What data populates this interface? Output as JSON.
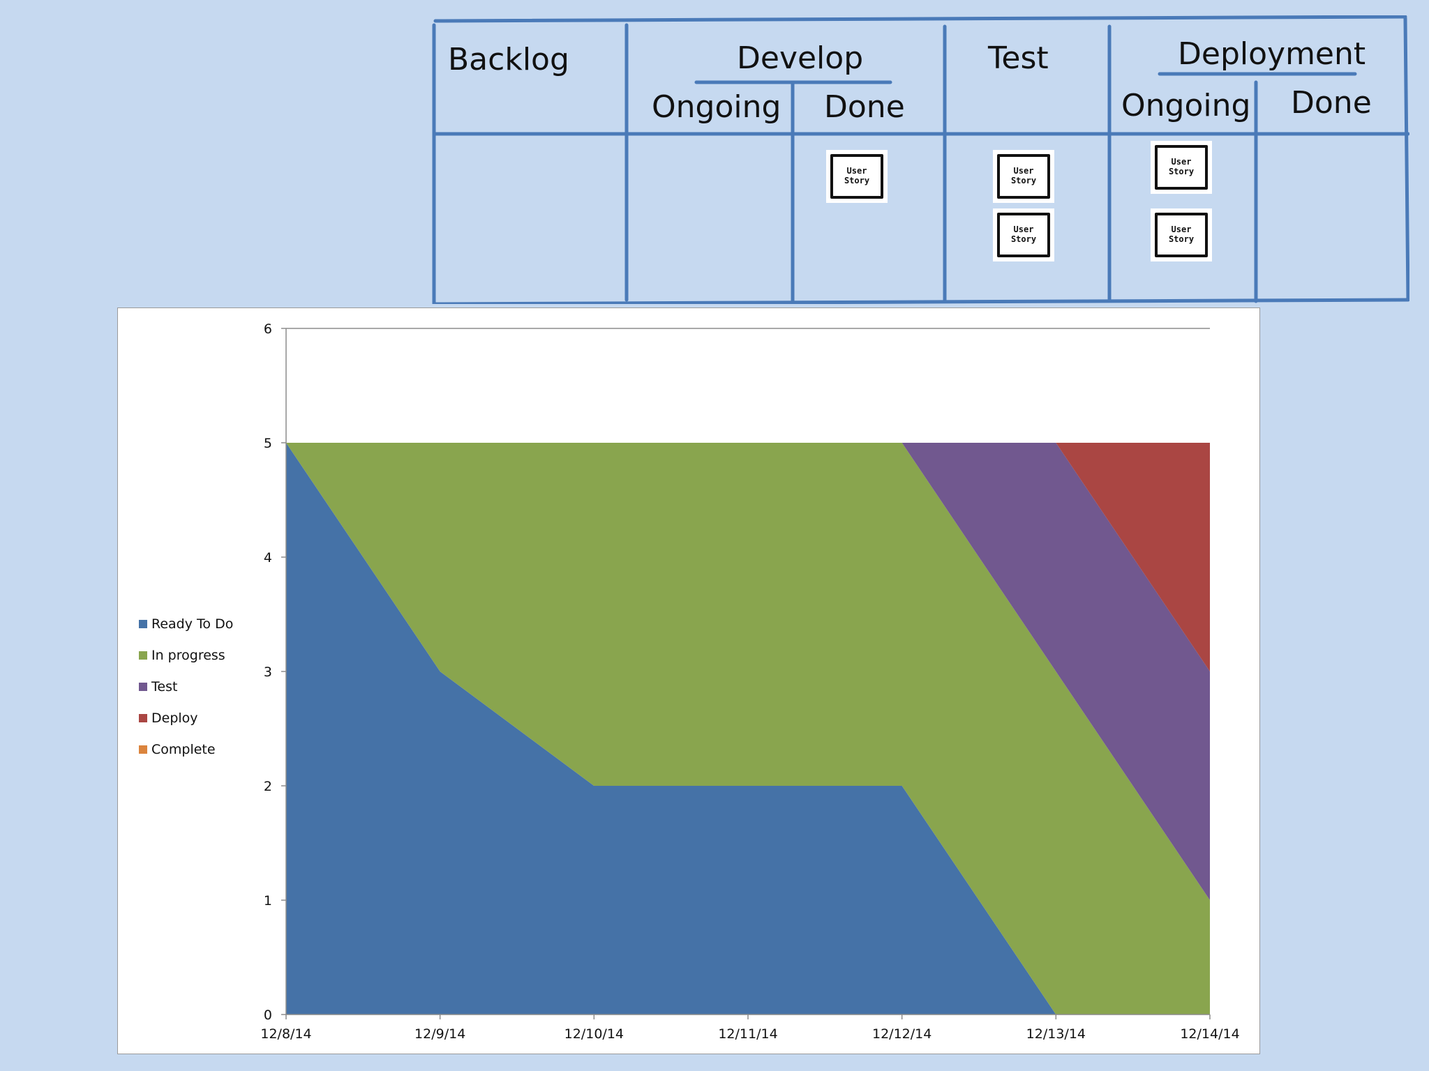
{
  "board": {
    "columns": {
      "backlog": "Backlog",
      "develop": "Develop",
      "develop_ongoing": "Ongoing",
      "develop_done": "Done",
      "test": "Test",
      "deployment": "Deployment",
      "deployment_ongoing": "Ongoing",
      "deployment_done": "Done"
    },
    "card_label": "User\nStory",
    "line_color": "#4a7ab8",
    "cards": {
      "develop_done": 1,
      "test": 2,
      "deployment_ongoing": 2
    }
  },
  "chart_data": {
    "type": "area",
    "stacked": true,
    "title": "",
    "xlabel": "",
    "ylabel": "",
    "ylim": [
      0,
      6
    ],
    "yticks": [
      0,
      1,
      2,
      3,
      4,
      5,
      6
    ],
    "grid": false,
    "legend_position": "left",
    "x": [
      "12/8/14",
      "12/9/14",
      "12/10/14",
      "12/11/14",
      "12/12/14",
      "12/13/14",
      "12/14/14"
    ],
    "series": [
      {
        "name": "Ready To Do",
        "color": "#4572a7",
        "values": [
          5,
          3,
          2,
          2,
          2,
          0,
          0
        ]
      },
      {
        "name": "In progress",
        "color": "#89a54e",
        "values": [
          0,
          2,
          3,
          3,
          3,
          3,
          1
        ]
      },
      {
        "name": "Test",
        "color": "#71588f",
        "values": [
          0,
          0,
          0,
          0,
          0,
          2,
          2
        ]
      },
      {
        "name": "Deploy",
        "color": "#aa4643",
        "values": [
          0,
          0,
          0,
          0,
          0,
          0,
          2
        ]
      },
      {
        "name": "Complete",
        "color": "#db843d",
        "values": [
          0,
          0,
          0,
          0,
          0,
          0,
          0
        ]
      }
    ]
  }
}
